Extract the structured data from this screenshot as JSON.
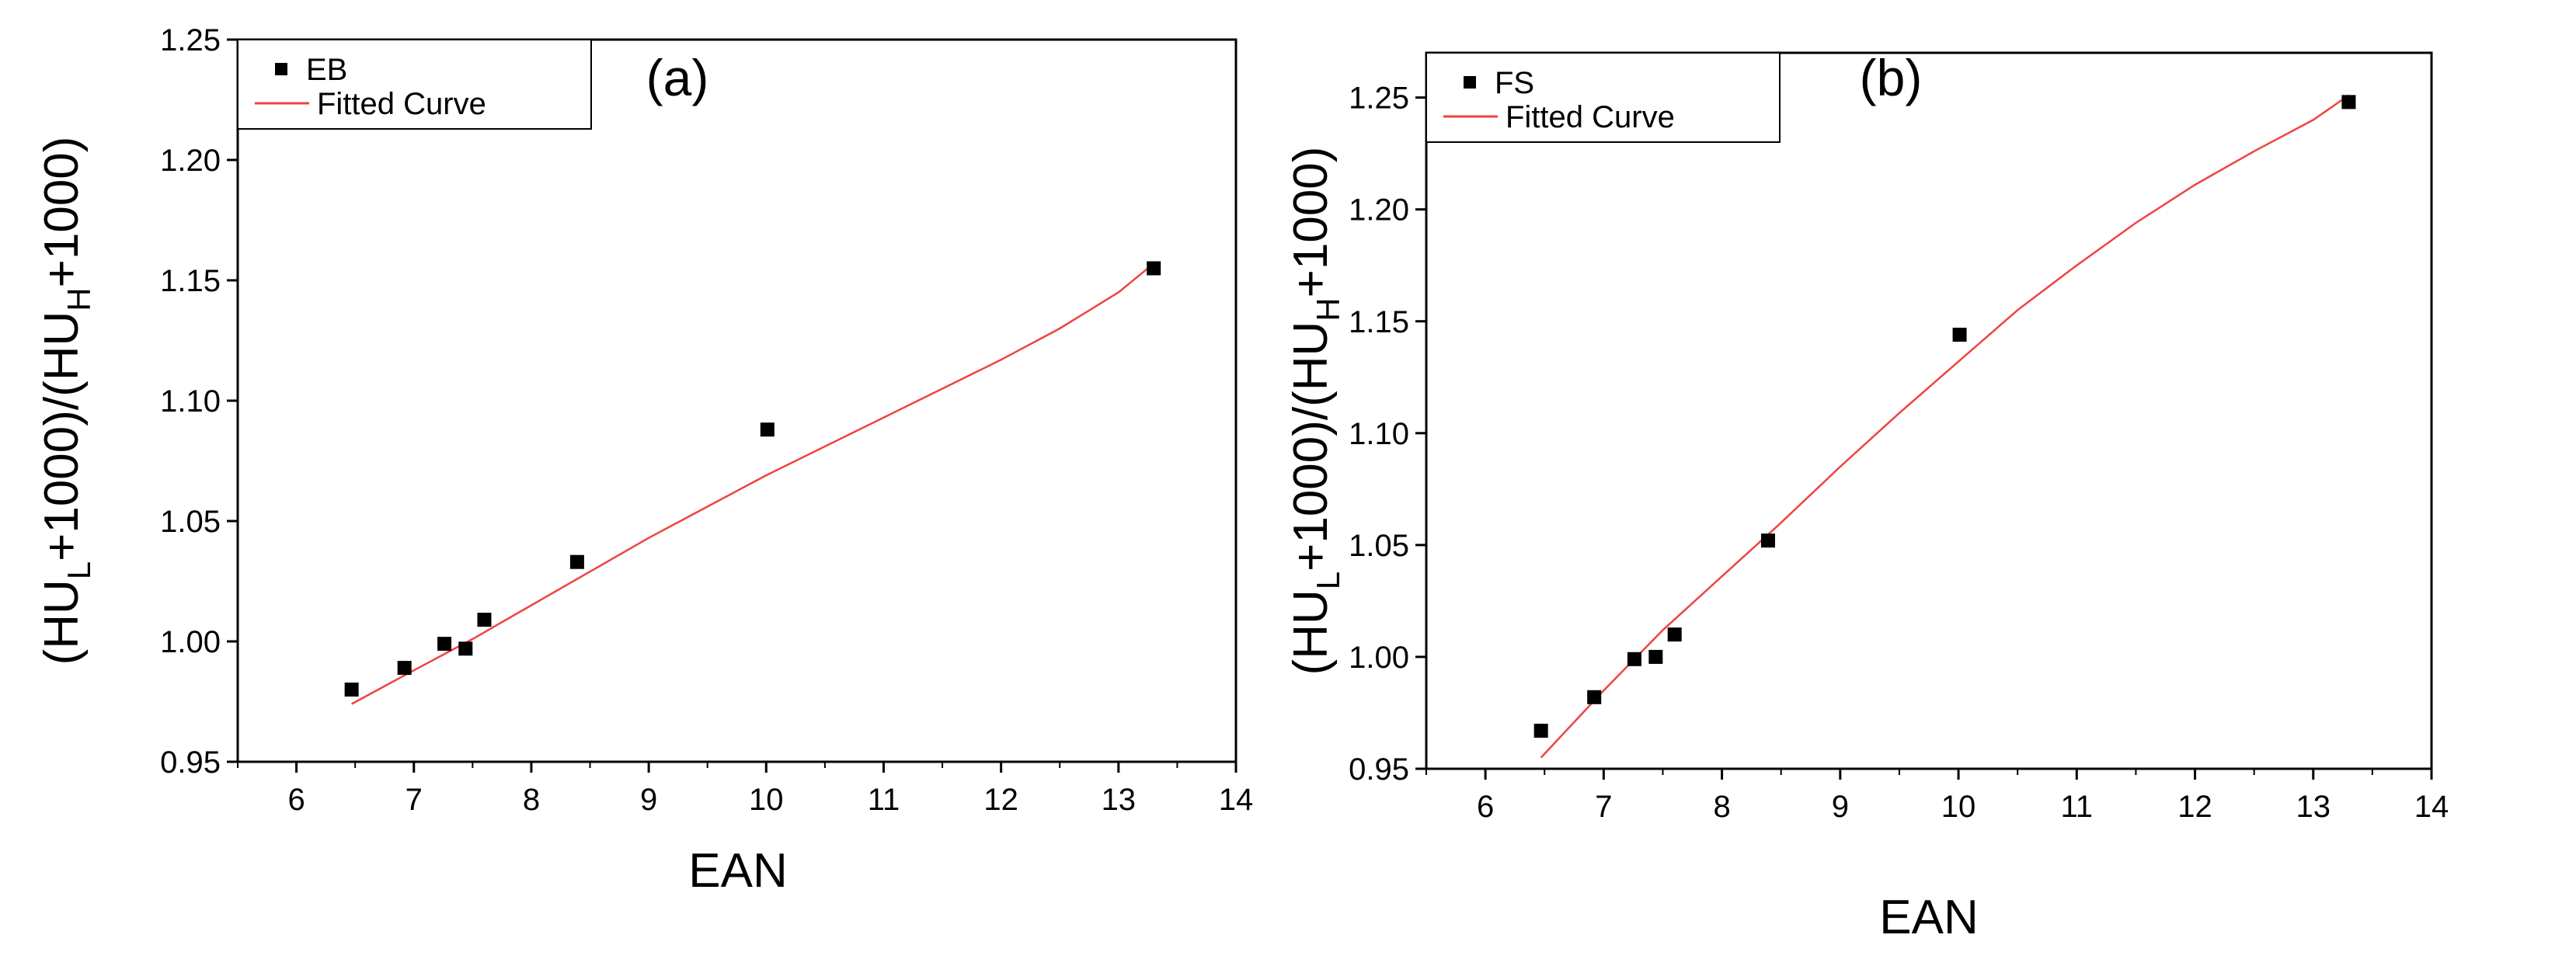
{
  "chart_data": [
    {
      "type": "scatter",
      "panel_label": "(a)",
      "xlabel": "EAN",
      "ylabel": {
        "prefix": "(HU",
        "sub1": "L",
        "mid": "+1000)/(HU",
        "sub2": "H",
        "suffix": "+1000)"
      },
      "xlim": [
        5.5,
        14
      ],
      "ylim": [
        0.95,
        1.25
      ],
      "xticks": [
        "6",
        "7",
        "8",
        "9",
        "10",
        "11",
        "12",
        "13",
        "14"
      ],
      "yticks": [
        "0.95",
        "1.00",
        "1.05",
        "1.10",
        "1.15",
        "1.20",
        "1.25"
      ],
      "legend": {
        "position": "top-left",
        "points_label": "EB",
        "curve_label": "Fitted Curve"
      },
      "series": [
        {
          "name": "EB",
          "kind": "points",
          "color": "#000000",
          "x": [
            6.47,
            6.92,
            7.26,
            7.44,
            7.6,
            8.39,
            10.01,
            13.3
          ],
          "y": [
            0.98,
            0.989,
            0.999,
            0.997,
            1.009,
            1.033,
            1.088,
            1.155
          ]
        },
        {
          "name": "Fitted Curve",
          "kind": "line",
          "color": "#f0433f",
          "x": [
            6.47,
            7.0,
            7.5,
            8.0,
            8.5,
            9.0,
            9.5,
            10.0,
            10.5,
            11.0,
            11.5,
            12.0,
            12.5,
            13.0,
            13.3
          ],
          "y": [
            0.974,
            0.988,
            1.001,
            1.015,
            1.029,
            1.043,
            1.056,
            1.069,
            1.081,
            1.093,
            1.105,
            1.117,
            1.13,
            1.145,
            1.157
          ]
        }
      ]
    },
    {
      "type": "scatter",
      "panel_label": "(b)",
      "xlabel": "EAN",
      "ylabel": {
        "prefix": "(HU",
        "sub1": "L",
        "mid": "+1000)/(HU",
        "sub2": "H",
        "suffix": "+1000)"
      },
      "xlim": [
        5.5,
        14
      ],
      "ylim": [
        0.95,
        1.27
      ],
      "xticks": [
        "6",
        "7",
        "8",
        "9",
        "10",
        "11",
        "12",
        "13",
        "14"
      ],
      "yticks": [
        "0.95",
        "1.00",
        "1.05",
        "1.10",
        "1.15",
        "1.20",
        "1.25"
      ],
      "legend": {
        "position": "top-left",
        "points_label": "FS",
        "curve_label": "Fitted Curve"
      },
      "series": [
        {
          "name": "FS",
          "kind": "points",
          "color": "#000000",
          "x": [
            6.47,
            6.92,
            7.26,
            7.44,
            7.6,
            8.39,
            10.01,
            13.3
          ],
          "y": [
            0.967,
            0.982,
            0.999,
            1.0,
            1.01,
            1.052,
            1.144,
            1.248
          ]
        },
        {
          "name": "Fitted Curve",
          "kind": "line",
          "color": "#f0433f",
          "x": [
            6.47,
            7.0,
            7.5,
            8.0,
            8.5,
            9.0,
            9.5,
            10.0,
            10.5,
            11.0,
            11.5,
            12.0,
            12.5,
            13.0,
            13.3
          ],
          "y": [
            0.955,
            0.985,
            1.012,
            1.036,
            1.06,
            1.085,
            1.109,
            1.132,
            1.155,
            1.175,
            1.194,
            1.211,
            1.226,
            1.24,
            1.251
          ]
        }
      ]
    }
  ]
}
